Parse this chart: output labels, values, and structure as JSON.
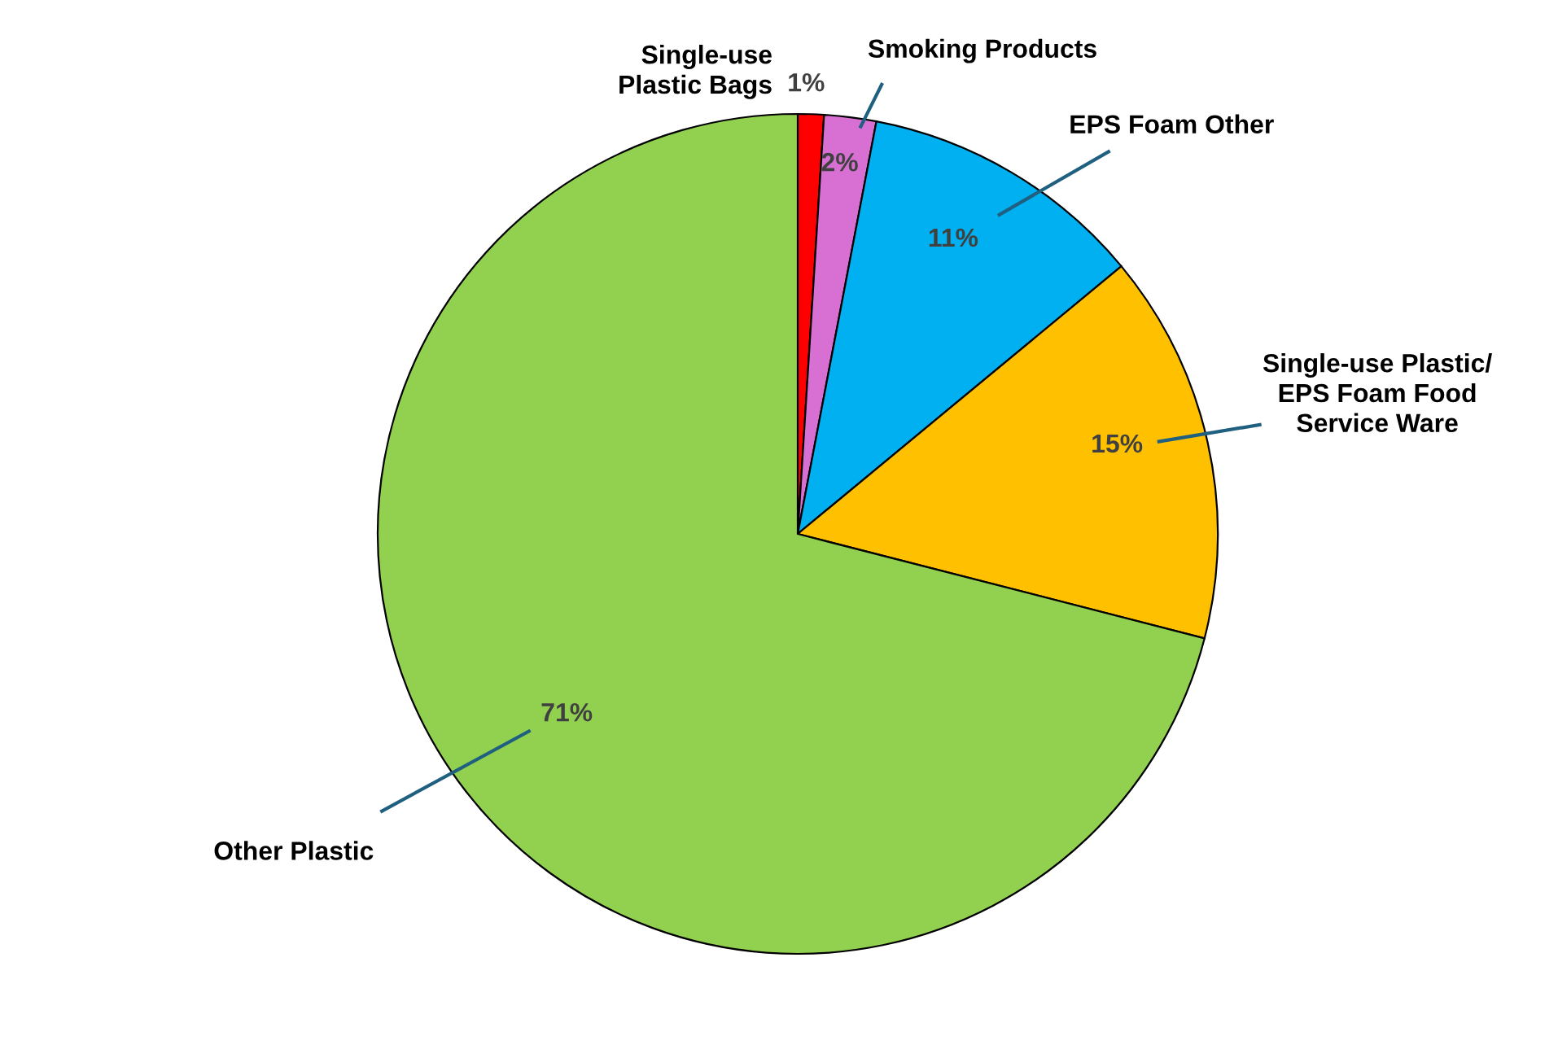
{
  "chart_data": {
    "type": "pie",
    "categories": [
      "Single-use\nPlastic Bags",
      "Smoking Products",
      "EPS Foam Other",
      "Single-use Plastic/\nEPS Foam Food\nService Ware",
      "Other Plastic"
    ],
    "values": [
      1,
      2,
      11,
      15,
      71
    ],
    "colors": [
      "#ff0000",
      "#d86fd2",
      "#00b0f0",
      "#ffc000",
      "#92d050"
    ],
    "value_labels": [
      "1%",
      "2%",
      "11%",
      "15%",
      "71%"
    ]
  }
}
